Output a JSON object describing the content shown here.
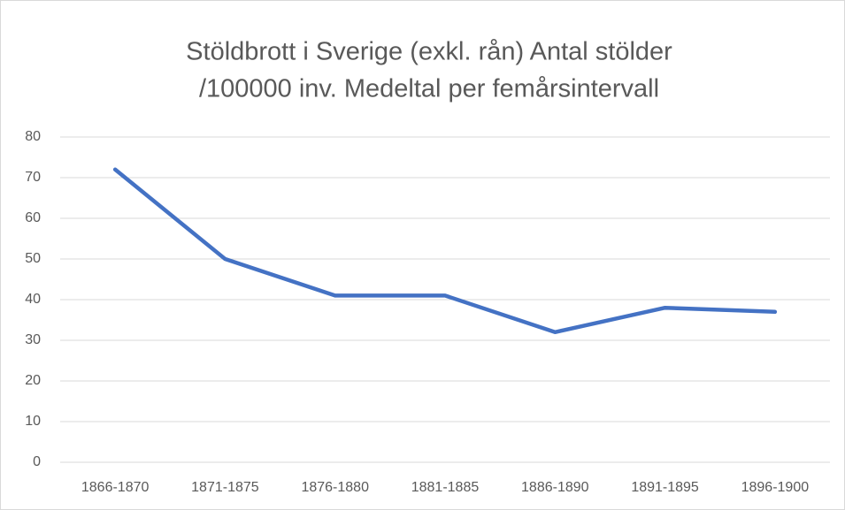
{
  "chart_data": {
    "type": "line",
    "title": [
      "Stöldbrott i Sverige (exkl. rån) Antal stölder",
      "/100000 inv. Medeltal per femårsintervall"
    ],
    "categories": [
      "1866-1870",
      "1871-1875",
      "1876-1880",
      "1881-1885",
      "1886-1890",
      "1891-1895",
      "1896-1900"
    ],
    "values": [
      72,
      50,
      41,
      41,
      32,
      38,
      37
    ],
    "color": "#4472c4",
    "ylim": [
      0,
      80
    ],
    "yticks": [
      0,
      10,
      20,
      30,
      40,
      50,
      60,
      70,
      80
    ],
    "grid": true
  }
}
